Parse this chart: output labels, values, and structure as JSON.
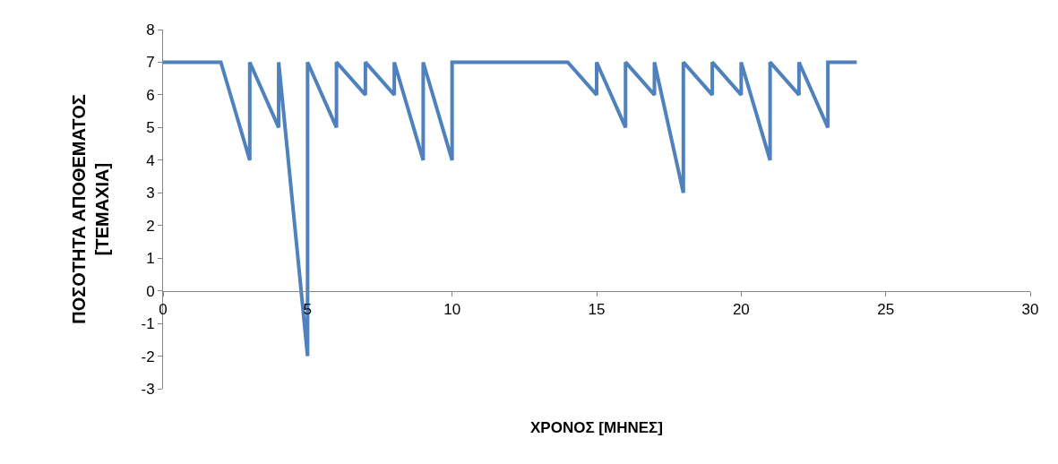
{
  "chart_data": {
    "type": "line",
    "xlabel": "ΧΡΟΝΟΣ [ΜΗΝΕΣ]",
    "ylabel": "ΠΟΣΟΤΗΤΑ ΑΠΟΘΕΜΑΤΟΣ\n[ΤΕΜΑΧΙΑ]",
    "xlim": [
      0,
      30
    ],
    "xticks": [
      0,
      5,
      10,
      15,
      20,
      25,
      30
    ],
    "ylim": [
      -3,
      8
    ],
    "yticks": [
      -3,
      -2,
      -1,
      0,
      1,
      2,
      3,
      4,
      5,
      6,
      7,
      8
    ],
    "series": [
      {
        "color": "#4f81bd",
        "x": [
          0,
          2,
          3,
          3,
          4,
          4,
          5,
          5,
          6,
          6,
          7,
          7,
          8,
          8,
          9,
          9,
          10,
          10,
          14,
          15,
          15,
          16,
          16,
          17,
          17,
          18,
          18,
          19,
          19,
          20,
          20,
          21,
          21,
          22,
          22,
          23,
          23,
          24
        ],
        "values": [
          7,
          7,
          4,
          7,
          5,
          7,
          -2,
          7,
          5,
          7,
          6,
          7,
          6,
          7,
          4,
          7,
          4,
          7,
          7,
          6,
          7,
          5,
          7,
          6,
          7,
          3,
          7,
          6,
          7,
          6,
          7,
          4,
          7,
          6,
          7,
          5,
          7,
          7
        ]
      }
    ]
  }
}
